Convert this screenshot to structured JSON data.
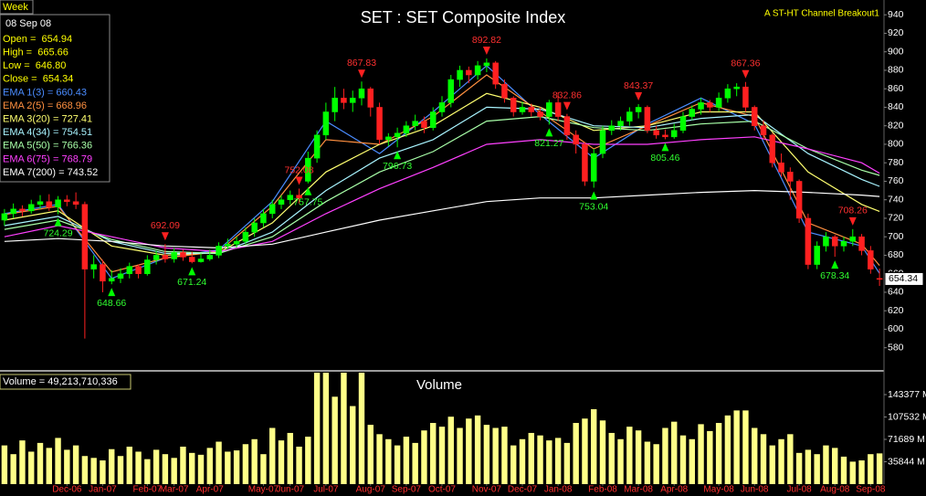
{
  "chart_data": {
    "type": "candlestick",
    "title": "SET : SET Composite Index",
    "indicator": "A ST-HT Channel  Breakout1",
    "period": "Week",
    "date": "08 Sep 08",
    "info": [
      {
        "text": "Open =  654.94",
        "color": "#ffff00"
      },
      {
        "text": "High =  665.66",
        "color": "#ffff00"
      },
      {
        "text": "Low =  646.80",
        "color": "#ffff00"
      },
      {
        "text": "Close =  654.34",
        "color": "#ffff00"
      }
    ],
    "up_color": "#00ff00",
    "down_color": "#ff2020",
    "xlim": [
      -0.5,
      98.5
    ],
    "xticks": [
      {
        "value": 7,
        "label": "Dec-06"
      },
      {
        "value": 11,
        "label": "Jan-07"
      },
      {
        "value": 16,
        "label": "Feb-07"
      },
      {
        "value": 19,
        "label": "Mar-07"
      },
      {
        "value": 23,
        "label": "Apr-07"
      },
      {
        "value": 29,
        "label": "May-07"
      },
      {
        "value": 32,
        "label": "Jun-07"
      },
      {
        "value": 36,
        "label": "Jul-07"
      },
      {
        "value": 41,
        "label": "Aug-07"
      },
      {
        "value": 45,
        "label": "Sep-07"
      },
      {
        "value": 49,
        "label": "Oct-07"
      },
      {
        "value": 54,
        "label": "Nov-07"
      },
      {
        "value": 58,
        "label": "Dec-07"
      },
      {
        "value": 62,
        "label": "Jan-08"
      },
      {
        "value": 67,
        "label": "Feb-08"
      },
      {
        "value": 71,
        "label": "Mar-08"
      },
      {
        "value": 75,
        "label": "Apr-08"
      },
      {
        "value": 80,
        "label": "May-08"
      },
      {
        "value": 84,
        "label": "Jun-08"
      },
      {
        "value": 89,
        "label": "Jul-08"
      },
      {
        "value": 93,
        "label": "Aug-08"
      },
      {
        "value": 97,
        "label": "Sep-08"
      }
    ],
    "ylim": [
      556,
      956
    ],
    "yticks": [
      580,
      600,
      620,
      640,
      660,
      680,
      700,
      720,
      740,
      760,
      780,
      800,
      820,
      840,
      860,
      880,
      900,
      920,
      940
    ],
    "ohlc": [
      [
        718,
        730,
        712,
        725
      ],
      [
        725,
        736,
        720,
        730
      ],
      [
        730,
        734,
        722,
        728
      ],
      [
        728,
        740,
        725,
        735
      ],
      [
        735,
        745,
        730,
        738
      ],
      [
        738,
        746,
        728,
        732
      ],
      [
        732,
        744,
        724.29,
        740
      ],
      [
        740,
        745,
        733,
        738
      ],
      [
        738,
        748,
        730,
        735
      ],
      [
        735,
        738,
        590,
        665
      ],
      [
        665,
        680,
        655,
        670
      ],
      [
        670,
        675,
        640,
        652
      ],
      [
        652,
        664,
        648.66,
        655
      ],
      [
        655,
        666,
        650,
        660
      ],
      [
        660,
        672,
        655,
        668
      ],
      [
        668,
        670,
        655,
        660
      ],
      [
        660,
        680,
        658,
        675
      ],
      [
        675,
        685,
        670,
        680
      ],
      [
        680,
        692.09,
        672,
        676
      ],
      [
        676,
        688,
        672,
        683
      ],
      [
        683,
        686,
        674,
        678
      ],
      [
        678,
        684,
        671.24,
        673
      ],
      [
        673,
        682,
        672,
        676
      ],
      [
        676,
        686,
        674,
        680
      ],
      [
        680,
        694,
        677,
        690
      ],
      [
        690,
        698,
        686,
        692
      ],
      [
        692,
        700,
        688,
        695
      ],
      [
        695,
        710,
        692,
        705
      ],
      [
        705,
        720,
        700,
        715
      ],
      [
        715,
        730,
        710,
        725
      ],
      [
        725,
        740,
        720,
        735
      ],
      [
        735,
        745,
        730,
        740
      ],
      [
        740,
        750,
        735,
        745
      ],
      [
        745,
        752.08,
        736,
        742
      ],
      [
        760,
        792,
        757.75,
        785
      ],
      [
        785,
        815,
        780,
        810
      ],
      [
        810,
        845,
        805,
        835
      ],
      [
        835,
        862,
        825,
        850
      ],
      [
        850,
        860,
        838,
        845
      ],
      [
        845,
        858,
        835,
        850
      ],
      [
        850,
        867.83,
        842,
        860
      ],
      [
        860,
        862,
        830,
        840
      ],
      [
        840,
        845,
        800,
        805
      ],
      [
        805,
        812,
        798,
        808
      ],
      [
        808,
        818,
        796.73,
        812
      ],
      [
        812,
        825,
        808,
        820
      ],
      [
        820,
        832,
        815,
        825
      ],
      [
        825,
        830,
        812,
        818
      ],
      [
        818,
        840,
        815,
        835
      ],
      [
        835,
        852,
        830,
        845
      ],
      [
        845,
        875,
        840,
        870
      ],
      [
        870,
        885,
        862,
        880
      ],
      [
        880,
        884,
        866,
        875
      ],
      [
        875,
        890,
        870,
        885
      ],
      [
        885,
        892.82,
        878,
        888
      ],
      [
        888,
        890,
        860,
        865
      ],
      [
        865,
        870,
        845,
        850
      ],
      [
        850,
        852,
        830,
        835
      ],
      [
        835,
        846,
        832,
        840
      ],
      [
        840,
        844,
        830,
        835
      ],
      [
        835,
        840,
        826,
        830
      ],
      [
        830,
        848,
        821.27,
        845
      ],
      [
        845,
        856,
        825,
        830
      ],
      [
        830,
        832.86,
        805,
        810
      ],
      [
        810,
        815,
        790,
        800
      ],
      [
        800,
        802,
        755,
        760
      ],
      [
        760,
        795,
        753.04,
        790
      ],
      [
        790,
        820,
        785,
        815
      ],
      [
        815,
        826,
        810,
        820
      ],
      [
        820,
        830,
        815,
        825
      ],
      [
        825,
        840,
        820,
        835
      ],
      [
        835,
        843.37,
        828,
        840
      ],
      [
        840,
        842,
        812,
        815
      ],
      [
        815,
        820,
        806,
        810
      ],
      [
        810,
        816,
        805.46,
        808
      ],
      [
        808,
        822,
        806,
        815
      ],
      [
        815,
        835,
        812,
        830
      ],
      [
        830,
        842,
        826,
        838
      ],
      [
        838,
        850,
        832,
        845
      ],
      [
        845,
        848,
        835,
        840
      ],
      [
        840,
        856,
        836,
        850
      ],
      [
        850,
        865,
        845,
        860
      ],
      [
        860,
        866,
        852,
        862
      ],
      [
        862,
        867.36,
        835,
        840
      ],
      [
        840,
        842,
        815,
        820
      ],
      [
        820,
        826,
        805,
        810
      ],
      [
        810,
        812,
        775,
        780
      ],
      [
        780,
        790,
        765,
        770
      ],
      [
        770,
        775,
        740,
        760
      ],
      [
        760,
        762,
        715,
        720
      ],
      [
        720,
        725,
        665,
        670
      ],
      [
        670,
        695,
        665,
        690
      ],
      [
        690,
        705,
        684,
        700
      ],
      [
        700,
        702,
        678.34,
        690
      ],
      [
        690,
        700,
        684,
        695
      ],
      [
        695,
        708.26,
        690,
        700
      ],
      [
        700,
        703,
        680,
        685
      ],
      [
        685,
        690,
        660,
        665
      ],
      [
        654.94,
        665.66,
        646.8,
        654.34
      ]
    ],
    "ema_index": [
      0,
      6,
      12,
      18,
      24,
      30,
      36,
      42,
      48,
      54,
      60,
      66,
      72,
      78,
      84,
      90,
      96,
      98
    ],
    "series": [
      {
        "legend": "EMA 1(3) = 660.43",
        "color": "#4a8cff",
        "values": [
          725,
          735,
          655,
          677,
          686,
          738,
          825,
          790,
          835,
          885,
          832,
          785,
          822,
          850,
          822,
          705,
          690,
          660.43
        ]
      },
      {
        "legend": "EMA 2(5) = 668.96",
        "color": "#ff9040",
        "values": [
          724,
          733,
          662,
          677,
          684,
          733,
          805,
          800,
          830,
          875,
          835,
          795,
          820,
          845,
          830,
          715,
          692,
          668.96
        ]
      },
      {
        "legend": "EMA 3(20) = 727.41",
        "color": "#ffff70",
        "values": [
          718,
          728,
          690,
          680,
          683,
          715,
          770,
          800,
          820,
          855,
          840,
          815,
          820,
          835,
          835,
          770,
          735,
          727.41
        ]
      },
      {
        "legend": "EMA 4(34) = 754.51",
        "color": "#a8f4ff",
        "values": [
          712,
          722,
          695,
          682,
          682,
          705,
          750,
          785,
          805,
          840,
          838,
          820,
          818,
          828,
          832,
          790,
          762,
          754.51
        ]
      },
      {
        "legend": "EMA 5(50) = 766.36",
        "color": "#a8ffa8",
        "values": [
          708,
          718,
          697,
          684,
          682,
          700,
          738,
          770,
          792,
          825,
          830,
          818,
          815,
          822,
          825,
          795,
          772,
          766.36
        ]
      },
      {
        "legend": "EMA 6(75) = 768.79",
        "color": "#ff40ff",
        "values": [
          700,
          712,
          700,
          688,
          684,
          695,
          725,
          752,
          775,
          800,
          805,
          800,
          800,
          805,
          808,
          795,
          780,
          768.79
        ]
      },
      {
        "legend": "EMA 7(200) = 743.52",
        "color": "#ffffff",
        "values": [
          695,
          698,
          695,
          690,
          688,
          692,
          705,
          718,
          728,
          738,
          742,
          742,
          745,
          748,
          750,
          748,
          745,
          743.52
        ]
      }
    ],
    "annotations": [
      {
        "index": 6,
        "kind": "low"
      },
      {
        "index": 12,
        "kind": "low"
      },
      {
        "index": 18,
        "kind": "high"
      },
      {
        "index": 21,
        "kind": "low"
      },
      {
        "index": 33,
        "kind": "high"
      },
      {
        "index": 34,
        "kind": "low"
      },
      {
        "index": 40,
        "kind": "high"
      },
      {
        "index": 44,
        "kind": "low"
      },
      {
        "index": 54,
        "kind": "high"
      },
      {
        "index": 61,
        "kind": "low"
      },
      {
        "index": 63,
        "kind": "high"
      },
      {
        "index": 66,
        "kind": "low"
      },
      {
        "index": 71,
        "kind": "high"
      },
      {
        "index": 74,
        "kind": "low"
      },
      {
        "index": 83,
        "kind": "high"
      },
      {
        "index": 93,
        "kind": "low"
      },
      {
        "index": 95,
        "kind": "high"
      }
    ],
    "volume": {
      "title": "Volume",
      "label": "Volume = 49,213,710,336",
      "color": "#ffff88",
      "ylim": [
        0,
        178500
      ],
      "yticks": [
        {
          "value": 35844,
          "label": "35844 M"
        },
        {
          "value": 71689,
          "label": "71689 M"
        },
        {
          "value": 107532,
          "label": "107532 M"
        },
        {
          "value": 143377,
          "label": "143377 M"
        }
      ],
      "values": [
        62000,
        48000,
        70000,
        52000,
        66000,
        58000,
        74000,
        55000,
        62000,
        45000,
        42000,
        38000,
        56000,
        45000,
        60000,
        52000,
        40000,
        55000,
        48000,
        42000,
        60000,
        50000,
        47000,
        58000,
        68000,
        52000,
        54000,
        64000,
        72000,
        48000,
        90000,
        70000,
        82000,
        60000,
        76000,
        180000,
        180000,
        140000,
        180000,
        125000,
        180000,
        95000,
        80000,
        72000,
        62000,
        76000,
        66000,
        86000,
        98000,
        92000,
        108000,
        90000,
        105000,
        110000,
        95000,
        90000,
        92000,
        62000,
        72000,
        82000,
        78000,
        70000,
        74000,
        66000,
        98000,
        105000,
        120000,
        102000,
        82000,
        72000,
        92000,
        86000,
        68000,
        64000,
        90000,
        100000,
        78000,
        72000,
        96000,
        85000,
        98000,
        110000,
        118000,
        118000,
        90000,
        80000,
        62000,
        72000,
        80000,
        50000,
        55000,
        48000,
        62000,
        58000,
        44000,
        36000,
        38000,
        48000,
        49213.710336
      ]
    }
  }
}
